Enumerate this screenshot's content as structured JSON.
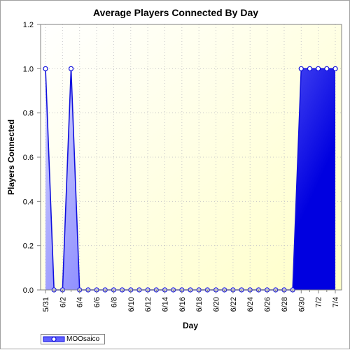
{
  "chart_data": {
    "type": "area",
    "title": "Average Players Connected By Day",
    "xlabel": "Day",
    "ylabel": "Players Connected",
    "ylim": [
      0,
      1.2
    ],
    "yticks": [
      "0.0",
      "0.2",
      "0.4",
      "0.6",
      "0.8",
      "1.0",
      "1.2"
    ],
    "xtick_labels": [
      "5/31",
      "6/2",
      "6/4",
      "6/6",
      "6/8",
      "6/10",
      "6/12",
      "6/14",
      "6/16",
      "6/18",
      "6/20",
      "6/22",
      "6/24",
      "6/26",
      "6/28",
      "6/30",
      "7/2",
      "7/4"
    ],
    "categories": [
      "5/31",
      "6/1",
      "6/2",
      "6/3",
      "6/4",
      "6/5",
      "6/6",
      "6/7",
      "6/8",
      "6/9",
      "6/10",
      "6/11",
      "6/12",
      "6/13",
      "6/14",
      "6/15",
      "6/16",
      "6/17",
      "6/18",
      "6/19",
      "6/20",
      "6/21",
      "6/22",
      "6/23",
      "6/24",
      "6/25",
      "6/26",
      "6/27",
      "6/28",
      "6/29",
      "6/30",
      "7/1",
      "7/2",
      "7/3",
      "7/4"
    ],
    "series": [
      {
        "name": "MOOsaico",
        "values": [
          1,
          0,
          0,
          1,
          0,
          0,
          0,
          0,
          0,
          0,
          0,
          0,
          0,
          0,
          0,
          0,
          0,
          0,
          0,
          0,
          0,
          0,
          0,
          0,
          0,
          0,
          0,
          0,
          0,
          0,
          1,
          1,
          1,
          1,
          1
        ]
      }
    ],
    "grid": true,
    "legend_position": "bottom-left",
    "colors": {
      "line": "#1010dd",
      "fill_light": "#c0c0ff",
      "fill_dark": "#0000ee",
      "plot_bg": "#fffff2",
      "grid": "#c8c8c8"
    }
  },
  "legend": {
    "label": "MOOsaico"
  }
}
